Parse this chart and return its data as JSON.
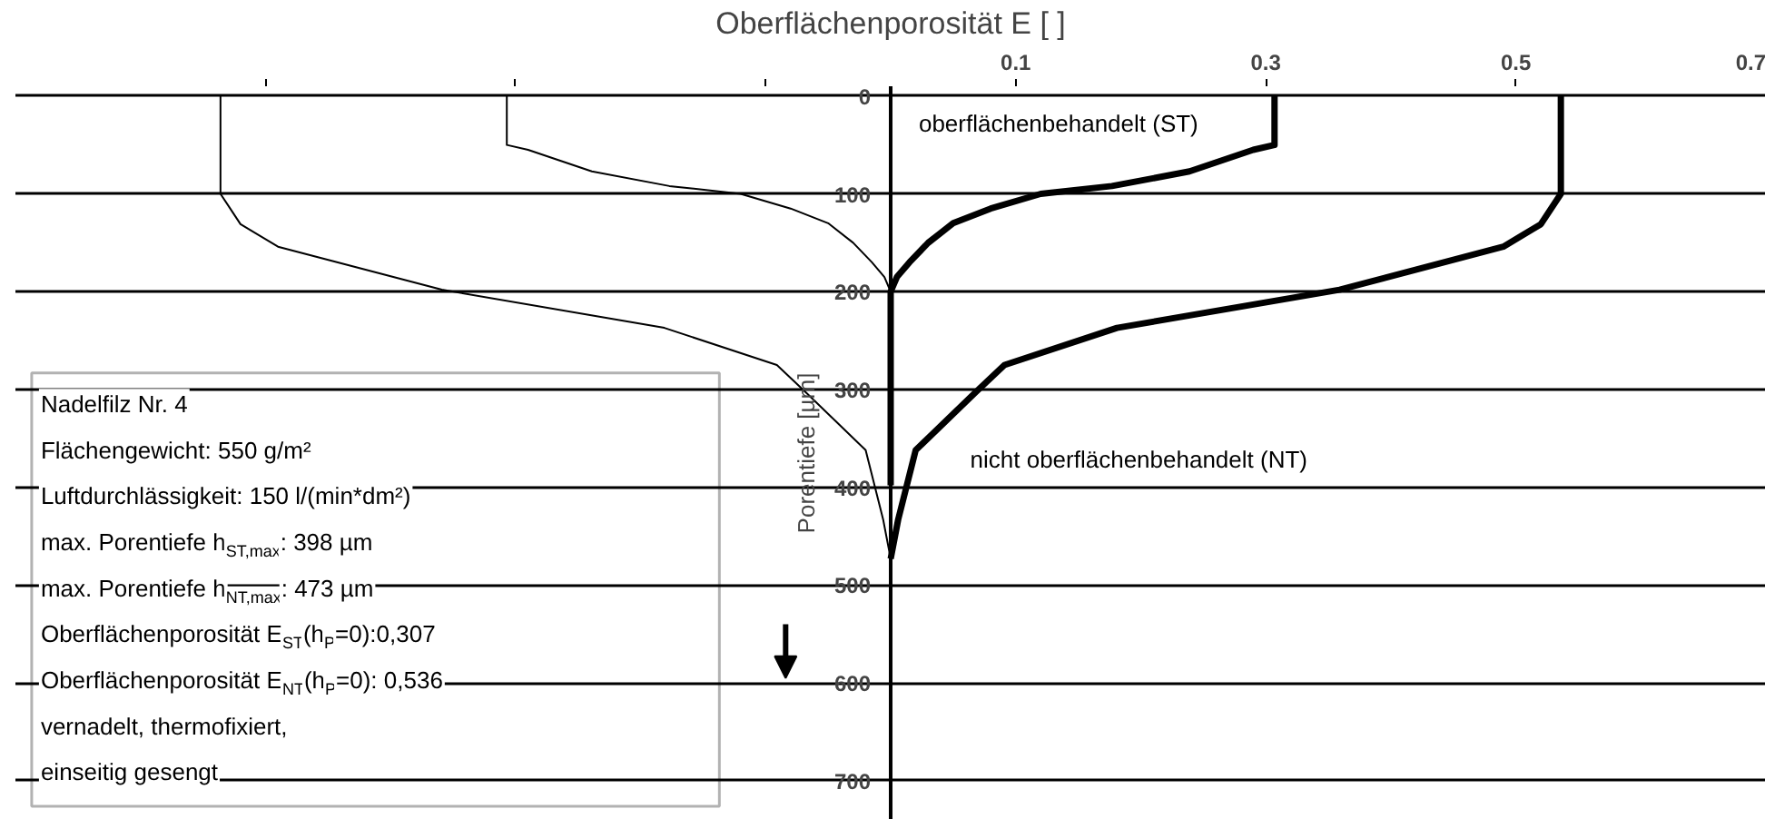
{
  "chart_data": {
    "type": "line",
    "xlabel": "Oberflächenporosität E [ ]",
    "ylabel": "Porentiefe [µm]",
    "xlim": [
      -0.7,
      0.7
    ],
    "ylim": [
      740,
      -10
    ],
    "xticks": [
      {
        "value": -0.5,
        "label": null
      },
      {
        "value": -0.3,
        "label": null
      },
      {
        "value": -0.1,
        "label": null
      },
      0.1,
      0.3,
      0.5,
      0.7
    ],
    "yticks": [
      0,
      100,
      200,
      300,
      400,
      500,
      600,
      700
    ],
    "grid": "y",
    "series": [
      {
        "name": "oberflächenbehandelt (ST)",
        "color": "#000000",
        "x": [
          0.307,
          0.307,
          0.29,
          0.239,
          0.177,
          0.12,
          0.08,
          0.05,
          0.03,
          0.015,
          0.005,
          0,
          0
        ],
        "values": [
          0,
          50,
          55,
          77,
          92,
          100,
          115,
          130,
          150,
          170,
          185,
          200,
          398
        ]
      },
      {
        "name": "nicht oberflächenbehandelt (NT)",
        "color": "#000000",
        "x": [
          0.536,
          0.536,
          0.52,
          0.49,
          0.359,
          0.181,
          0.091,
          0.067,
          0.02,
          0.006,
          0
        ],
        "values": [
          0,
          100,
          131,
          154,
          198,
          237,
          275,
          304,
          362,
          433,
          473
        ]
      },
      {
        "color": "#000000",
        "x": [
          -0.307,
          -0.307,
          -0.29,
          -0.239,
          -0.177,
          -0.12,
          -0.08,
          -0.05,
          -0.03,
          -0.015,
          -0.005,
          0,
          0
        ],
        "values": [
          0,
          50,
          55,
          77,
          92,
          100,
          115,
          130,
          150,
          170,
          185,
          200,
          398
        ]
      },
      {
        "color": "#000000",
        "x": [
          -0.536,
          -0.536,
          -0.52,
          -0.49,
          -0.359,
          -0.181,
          -0.091,
          -0.067,
          -0.02,
          -0.006,
          0
        ],
        "values": [
          0,
          100,
          131,
          154,
          198,
          237,
          275,
          304,
          362,
          433,
          473
        ]
      }
    ],
    "annotations": [
      "Nadelfilz Nr. 4",
      "Flächengewicht: 550 g/m²",
      "Luftdurchlässigkeit: 150 l/(min*dm²)",
      "max. Porentiefe h$_{ST,max}$: 398 µm",
      "max. Porentiefe h$_{NT,max}$: 473 µm",
      "Oberflächenporosität E$_{ST}$(h$_{P}$=0):0,307",
      "Oberflächenporosität E$_{NT}$(h$_{P}$=0): 0,536",
      "vernadelt, thermofixiert,",
      "einseitig gesengt"
    ]
  }
}
